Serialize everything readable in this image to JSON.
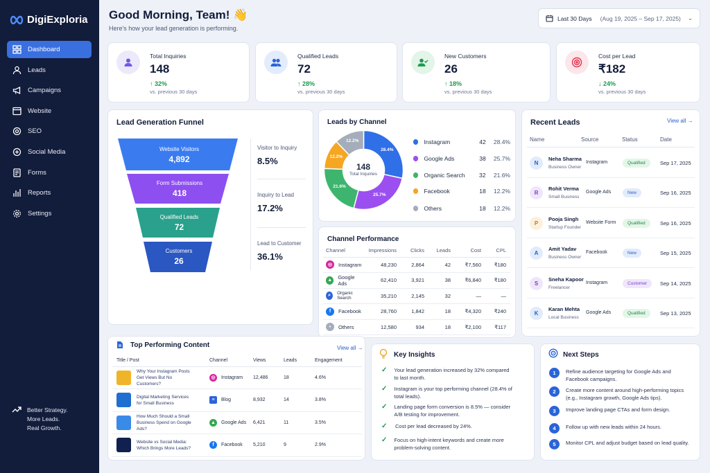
{
  "brand": {
    "name": "DigiExploria"
  },
  "sidebar": {
    "items": [
      {
        "label": "Dashboard"
      },
      {
        "label": "Leads"
      },
      {
        "label": "Campaigns"
      },
      {
        "label": "Website"
      },
      {
        "label": "SEO"
      },
      {
        "label": "Social Media"
      },
      {
        "label": "Forms"
      },
      {
        "label": "Reports"
      },
      {
        "label": "Settings"
      }
    ],
    "tagline": [
      "Better Strategy.",
      "More Leads.",
      "Real Growth."
    ]
  },
  "header": {
    "title": "Good Morning, Team! 👋",
    "subtitle": "Here's how your lead generation is performing.",
    "date_label": "Last 30 Days",
    "date_range": "(Aug 19, 2025 – Sep 17, 2025)"
  },
  "kpis": [
    {
      "label": "Total Inquiries",
      "value": "148",
      "change": "↑ 32%",
      "compare": "vs. previous 30 days",
      "color": "#6c5ce7"
    },
    {
      "label": "Qualified Leads",
      "value": "72",
      "change": "↑ 28%",
      "compare": "vs. previous 30 days",
      "color": "#2a64d8"
    },
    {
      "label": "New Customers",
      "value": "26",
      "change": "↑ 18%",
      "compare": "vs. previous 30 days",
      "color": "#1a9c4a"
    },
    {
      "label": "Cost per Lead",
      "value": "₹182",
      "change": "↓ 24%",
      "compare": "vs. previous 30 days",
      "color": "#e0334e"
    }
  ],
  "funnel": {
    "title": "Lead Generation Funnel",
    "stages": [
      {
        "label": "Website Visitors",
        "value": "4,892",
        "color": "#3a7cf0"
      },
      {
        "label": "Form Submissions",
        "value": "418",
        "color": "#8e4ff0"
      },
      {
        "label": "Qualified Leads",
        "value": "72",
        "color": "#2aa18c"
      },
      {
        "label": "Customers",
        "value": "26",
        "color": "#2a57c2"
      }
    ],
    "conversions": [
      {
        "label": "Visitor to Inquiry",
        "value": "8.5%"
      },
      {
        "label": "Inquiry to Lead",
        "value": "17.2%"
      },
      {
        "label": "Lead to Customer",
        "value": "36.1%"
      }
    ]
  },
  "channels": {
    "title": "Leads by Channel",
    "center_value": "148",
    "center_label": "Total Inquiries",
    "items": [
      {
        "name": "Instagram",
        "count": "42",
        "pct": "28.4%",
        "color": "#2f6fe8"
      },
      {
        "name": "Google Ads",
        "count": "38",
        "pct": "25.7%",
        "color": "#9b4ff0"
      },
      {
        "name": "Organic Search",
        "count": "32",
        "pct": "21.6%",
        "color": "#3db56e"
      },
      {
        "name": "Facebook",
        "count": "18",
        "pct": "12.2%",
        "color": "#f5a623"
      },
      {
        "name": "Others",
        "count": "18",
        "pct": "12.2%",
        "color": "#a5adbb"
      }
    ]
  },
  "chart_data": {
    "type": "pie",
    "categories": [
      "Instagram",
      "Google Ads",
      "Organic Search",
      "Facebook",
      "Others"
    ],
    "values": [
      28.4,
      25.7,
      21.6,
      12.2,
      12.2
    ],
    "title": "Leads by Channel"
  },
  "performance": {
    "title": "Channel Performance",
    "headers": [
      "Channel",
      "Impressions",
      "Clicks",
      "Leads",
      "Cost",
      "CPL"
    ],
    "rows": [
      {
        "channel": "Instagram",
        "icon": "instagram-icon",
        "c1": "48,230",
        "c2": "2,864",
        "c3": "42",
        "c4": "₹7,560",
        "c5": "₹180"
      },
      {
        "channel": "Google Ads",
        "icon": "google-ads-icon",
        "c1": "62,410",
        "c2": "3,921",
        "c3": "38",
        "c4": "₹6,840",
        "c5": "₹180"
      },
      {
        "channel": "Organic Search",
        "icon": "search-icon",
        "c1": "35,210",
        "c2": "2,145",
        "c3": "32",
        "c4": "—",
        "c5": "—"
      },
      {
        "channel": "Facebook",
        "icon": "facebook-icon",
        "c1": "28,760",
        "c2": "1,842",
        "c3": "18",
        "c4": "₹4,320",
        "c5": "₹240"
      },
      {
        "channel": "Others",
        "icon": "others-icon",
        "c1": "12,580",
        "c2": "934",
        "c3": "18",
        "c4": "₹2,100",
        "c5": "₹117"
      }
    ]
  },
  "recent": {
    "title": "Recent Leads",
    "view_all": "View all",
    "headers": [
      "Name",
      "Source",
      "Status",
      "Date"
    ],
    "rows": [
      {
        "initial": "N",
        "name": "Neha Sharma",
        "role": "Business Owner",
        "source": "Instagram",
        "status": "Qualified",
        "date": "Sep 17, 2025",
        "bg": "#e1ebfb",
        "fg": "#2a5fc9",
        "st": "q"
      },
      {
        "initial": "R",
        "name": "Rohit Verma",
        "role": "Small Business",
        "source": "Google Ads",
        "status": "New",
        "date": "Sep 16, 2025",
        "bg": "#efe6fb",
        "fg": "#7a3fc9",
        "st": "n"
      },
      {
        "initial": "P",
        "name": "Pooja Singh",
        "role": "Startup Founder",
        "source": "Website Form",
        "status": "Qualified",
        "date": "Sep 16, 2025",
        "bg": "#fdf0dc",
        "fg": "#c47a12",
        "st": "q"
      },
      {
        "initial": "A",
        "name": "Amit Yadav",
        "role": "Business Owner",
        "source": "Facebook",
        "status": "New",
        "date": "Sep 15, 2025",
        "bg": "#e1ebfb",
        "fg": "#2a5fc9",
        "st": "n"
      },
      {
        "initial": "S",
        "name": "Sneha Kapoor",
        "role": "Freelancer",
        "source": "Instagram",
        "status": "Customer",
        "date": "Sep 14, 2025",
        "bg": "#efe6fb",
        "fg": "#7a3fc9",
        "st": "c"
      },
      {
        "initial": "K",
        "name": "Karan Mehta",
        "role": "Local Business",
        "source": "Google Ads",
        "status": "Qualified",
        "date": "Sep 13, 2025",
        "bg": "#e1ebfb",
        "fg": "#2a5fc9",
        "st": "q"
      }
    ]
  },
  "content": {
    "title": "Top Performing Content",
    "view_all": "View all",
    "headers": [
      "Title / Post",
      "Channel",
      "Views",
      "Leads",
      "Engagement"
    ],
    "rows": [
      {
        "title": "Why Your Instagram Posts Get Views But No Customers?",
        "channel": "Instagram",
        "views": "12,486",
        "leads": "18",
        "eng": "4.6%",
        "thumb": "#f0b429",
        "cc": "#d6249f"
      },
      {
        "title": "Digital Marketing Services for Small Business",
        "channel": "Blog",
        "views": "8,932",
        "leads": "14",
        "eng": "3.8%",
        "thumb": "#1f6fd1",
        "cc": "#2a64d8"
      },
      {
        "title": "How Much Should a Small Business Spend on Google Ads?",
        "channel": "Google Ads",
        "views": "6,421",
        "leads": "11",
        "eng": "3.5%",
        "thumb": "#3a8ae8",
        "cc": "#34a853"
      },
      {
        "title": "Website vs Social Media: Which Brings More Leads?",
        "channel": "Facebook",
        "views": "5,210",
        "leads": "9",
        "eng": "2.9%",
        "thumb": "#10214f",
        "cc": "#1877f2"
      }
    ]
  },
  "insights": {
    "title": "Key Insights",
    "items": [
      "Your lead generation increased by 32% compared to last month.",
      "Instagram is your top performing channel (28.4% of total leads).",
      "Landing page form conversion is 8.5% — consider A/B testing for improvement.",
      "Cost per lead decreased by 24%.",
      "Focus on high-intent keywords and create more problem-solving content."
    ]
  },
  "next_steps": {
    "title": "Next Steps",
    "items": [
      "Refine audience targeting for Google Ads and Facebook campaigns.",
      "Create more content around high-performing topics (e.g., Instagram growth, Google Ads tips).",
      "Improve landing page CTAs and form design.",
      "Follow up with new leads within 24 hours.",
      "Monitor CPL and adjust budget based on lead quality."
    ]
  }
}
